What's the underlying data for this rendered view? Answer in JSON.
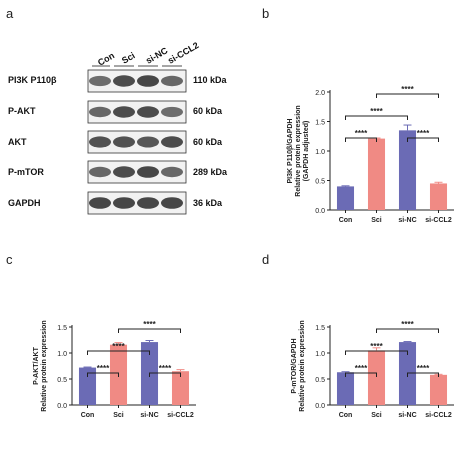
{
  "panels": {
    "a": {
      "letter": "a",
      "lanes": [
        "Con",
        "Sci",
        "si-NC",
        "si-CCL2"
      ],
      "blots": [
        {
          "protein": "PI3K P110β",
          "kda": "110 kDa",
          "band": [
            0.55,
            0.85,
            0.9,
            0.6
          ]
        },
        {
          "protein": "P-AKT",
          "kda": "60 kDa",
          "band": [
            0.6,
            0.85,
            0.85,
            0.55
          ]
        },
        {
          "protein": "AKT",
          "kda": "60 kDa",
          "band": [
            0.8,
            0.8,
            0.75,
            0.85
          ]
        },
        {
          "protein": "P-mTOR",
          "kda": "289 kDa",
          "band": [
            0.6,
            0.85,
            0.9,
            0.6
          ]
        },
        {
          "protein": "GAPDH",
          "kda": "36 kDa",
          "band": [
            0.9,
            0.9,
            0.9,
            0.9
          ]
        }
      ]
    }
  },
  "chart_data": [
    {
      "letter": "b",
      "type": "bar",
      "categories": [
        "Con",
        "Sci",
        "si-NC",
        "si-CCL2"
      ],
      "values": [
        0.4,
        1.21,
        1.35,
        0.45
      ],
      "errors": [
        0.01,
        0.01,
        0.09,
        0.02
      ],
      "colors": [
        "#6b6bb5",
        "#f08a84",
        "#6b6bb5",
        "#f08a84"
      ],
      "ylabel": [
        "PI3K P110β/GAPDH",
        "Relative protein expression",
        "(GAPDH adjusted)"
      ],
      "ylim": [
        0,
        2.0
      ],
      "yticks": [
        "0.0",
        "0.5",
        "1.0",
        "1.5",
        "2.0"
      ],
      "significance": [
        {
          "from": 0,
          "to": 1,
          "label": "****"
        },
        {
          "from": 2,
          "to": 3,
          "label": "****"
        },
        {
          "from": 0,
          "to": 2,
          "label": "****"
        },
        {
          "from": 1,
          "to": 3,
          "label": "****"
        }
      ]
    },
    {
      "letter": "c",
      "type": "bar",
      "categories": [
        "Con",
        "Sci",
        "si-NC",
        "si-CCL2"
      ],
      "values": [
        0.72,
        1.16,
        1.21,
        0.65
      ],
      "errors": [
        0.01,
        0.04,
        0.03,
        0.03
      ],
      "colors": [
        "#6b6bb5",
        "#f08a84",
        "#6b6bb5",
        "#f08a84"
      ],
      "ylabel": [
        "P-AKT/AKT",
        "Relative protein expression"
      ],
      "ylim": [
        0,
        1.5
      ],
      "yticks": [
        "0.0",
        "0.5",
        "1.0",
        "1.5"
      ],
      "significance": [
        {
          "from": 0,
          "to": 1,
          "label": "****"
        },
        {
          "from": 2,
          "to": 3,
          "label": "****"
        },
        {
          "from": 0,
          "to": 2,
          "label": "****"
        },
        {
          "from": 1,
          "to": 3,
          "label": "****"
        }
      ]
    },
    {
      "letter": "d",
      "type": "bar",
      "categories": [
        "Con",
        "Sci",
        "si-NC",
        "si-CCL2"
      ],
      "values": [
        0.63,
        1.05,
        1.21,
        0.58
      ],
      "errors": [
        0.01,
        0.05,
        0.01,
        0.01
      ],
      "colors": [
        "#6b6bb5",
        "#f08a84",
        "#6b6bb5",
        "#f08a84"
      ],
      "ylabel": [
        "P-mTOR/GAPDH",
        "Relative protein expression"
      ],
      "ylim": [
        0,
        1.5
      ],
      "yticks": [
        "0.0",
        "0.5",
        "1.0",
        "1.5"
      ],
      "significance": [
        {
          "from": 0,
          "to": 1,
          "label": "****"
        },
        {
          "from": 2,
          "to": 3,
          "label": "****"
        },
        {
          "from": 0,
          "to": 2,
          "label": "****"
        },
        {
          "from": 1,
          "to": 3,
          "label": "****"
        }
      ]
    }
  ]
}
